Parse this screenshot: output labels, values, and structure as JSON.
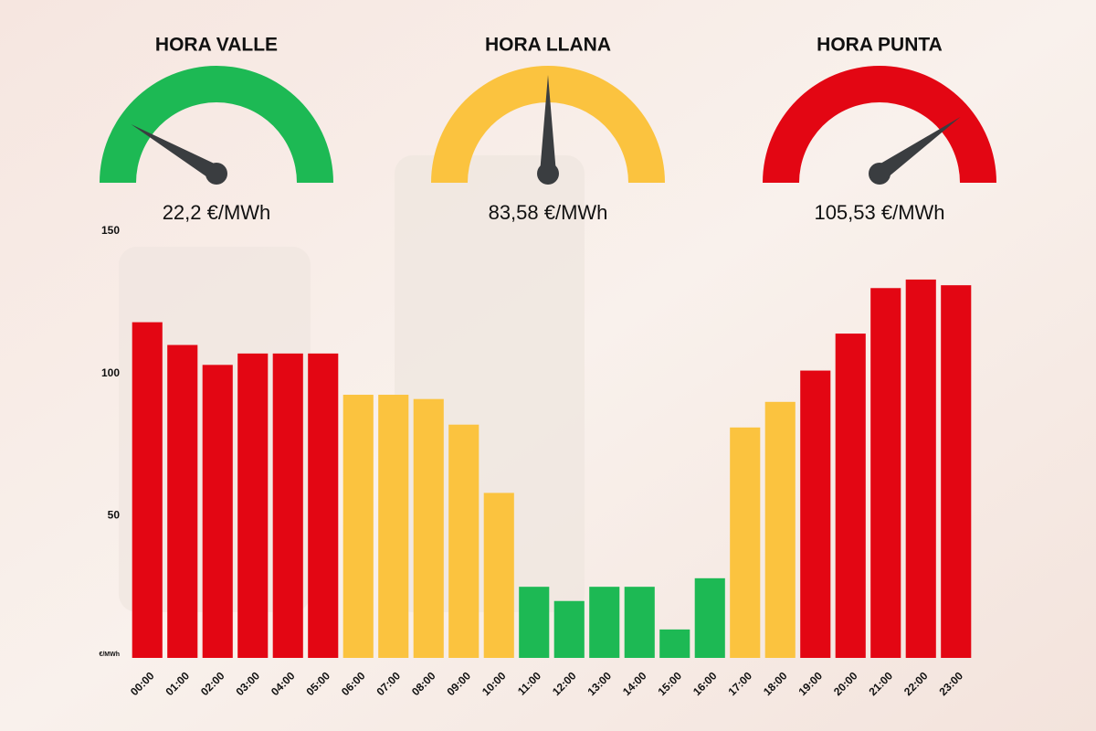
{
  "chart_data": {
    "type": "bar",
    "gauges": [
      {
        "title": "HORA VALLE",
        "label": "22,2 €/MWh",
        "color": "#1db954"
      },
      {
        "title": "HORA LLANA",
        "label": "83,58 €/MWh",
        "color": "#fbc33f"
      },
      {
        "title": "HORA PUNTA",
        "label": "105,53 €/MWh",
        "color": "#e30613"
      }
    ],
    "ylabel": "€/MWh",
    "categories": [
      "00:00",
      "01:00",
      "02:00",
      "03:00",
      "04:00",
      "05:00",
      "06:00",
      "07:00",
      "08:00",
      "09:00",
      "10:00",
      "11:00",
      "12:00",
      "13:00",
      "14:00",
      "15:00",
      "16:00",
      "17:00",
      "18:00",
      "19:00",
      "20:00",
      "21:00",
      "22:00",
      "23:00"
    ],
    "values": [
      118,
      110,
      103,
      107,
      107,
      107,
      92.5,
      92.5,
      91,
      82,
      58,
      25,
      20,
      25,
      25,
      10,
      28,
      81,
      90,
      101,
      114,
      130,
      133,
      131
    ],
    "colors": [
      "#e30613",
      "#e30613",
      "#e30613",
      "#e30613",
      "#e30613",
      "#e30613",
      "#fbc33f",
      "#fbc33f",
      "#fbc33f",
      "#fbc33f",
      "#fbc33f",
      "#1db954",
      "#1db954",
      "#1db954",
      "#1db954",
      "#1db954",
      "#1db954",
      "#fbc33f",
      "#fbc33f",
      "#e30613",
      "#e30613",
      "#e30613",
      "#e30613",
      "#e30613"
    ],
    "ylim": [
      0,
      150
    ],
    "yticks": [
      50,
      100,
      150
    ],
    "grid": false
  }
}
